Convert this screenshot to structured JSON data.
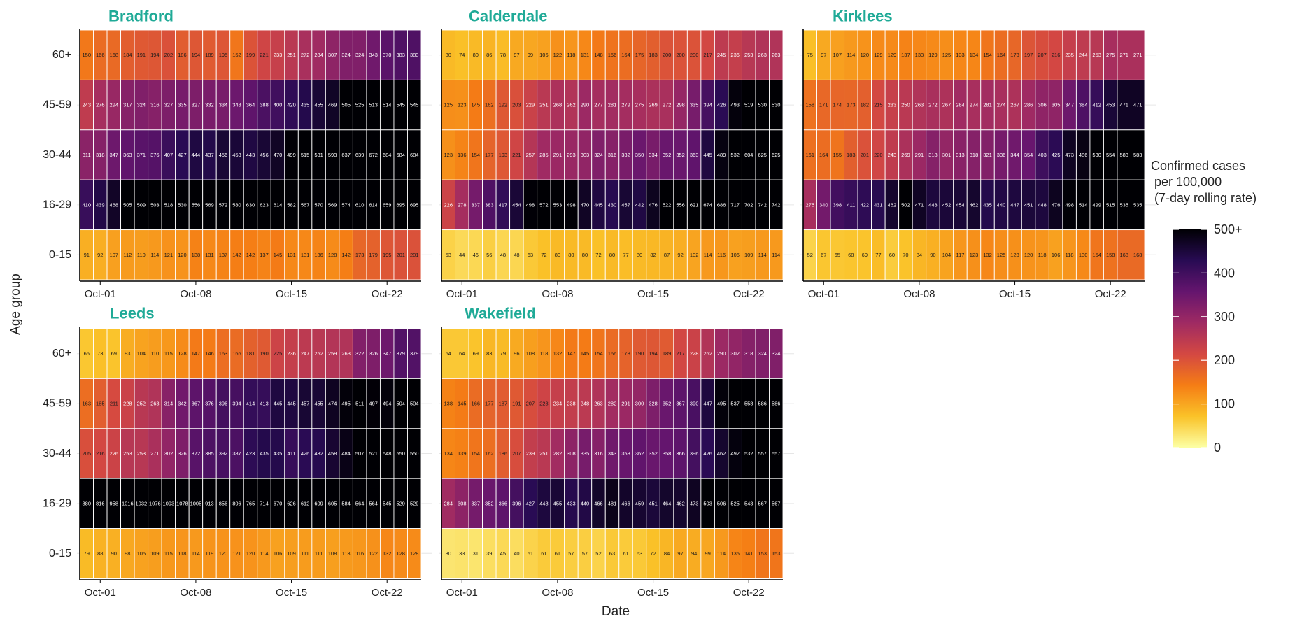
{
  "chart_data": {
    "type": "heatmap",
    "xlabel": "Date",
    "ylabel": "Age group",
    "age_groups": [
      "60+",
      "45-59",
      "30-44",
      "16-29",
      "0-15"
    ],
    "x_tick_labels": [
      "Oct-01",
      "Oct-08",
      "Oct-15",
      "Oct-22"
    ],
    "n_days": 25,
    "legend": {
      "title_lines": [
        "Confirmed cases",
        "per 100,000",
        "(7-day rolling rate)"
      ],
      "ticks": [
        "0",
        "100",
        "200",
        "300",
        "400",
        "500+"
      ],
      "range": [
        0,
        500
      ],
      "colormap": "inferno_reversed",
      "colors": [
        "#fcffa4",
        "#fac228",
        "#f57d15",
        "#d44842",
        "#9f2a63",
        "#65156e",
        "#280b53",
        "#000004"
      ]
    },
    "panels": [
      {
        "name": "Bradford",
        "rows": [
          [
            150,
            166,
            168,
            184,
            191,
            194,
            202,
            186,
            194,
            189,
            195,
            152,
            199,
            221,
            233,
            251,
            272,
            284,
            307,
            324,
            324,
            343,
            370,
            383,
            383
          ],
          [
            243,
            276,
            294,
            317,
            324,
            316,
            327,
            335,
            327,
            332,
            334,
            348,
            364,
            388,
            400,
            420,
            435,
            455,
            469,
            505,
            525,
            513,
            514,
            545,
            545
          ],
          [
            311,
            318,
            347,
            363,
            371,
            376,
            407,
            427,
            444,
            437,
            456,
            453,
            443,
            456,
            470,
            499,
            515,
            531,
            593,
            637,
            639,
            672,
            684,
            684,
            684
          ],
          [
            410,
            439,
            468,
            505,
            509,
            503,
            518,
            530,
            556,
            569,
            572,
            580,
            630,
            623,
            614,
            582,
            567,
            570,
            569,
            574,
            610,
            614,
            659,
            695,
            695
          ],
          [
            91,
            92,
            107,
            112,
            110,
            114,
            121,
            120,
            138,
            131,
            137,
            142,
            142,
            137,
            145,
            131,
            131,
            136,
            128,
            142,
            173,
            179,
            195,
            201,
            201
          ]
        ]
      },
      {
        "name": "Calderdale",
        "rows": [
          [
            80,
            74,
            80,
            86,
            78,
            97,
            99,
            106,
            122,
            118,
            131,
            148,
            156,
            164,
            175,
            183,
            200,
            200,
            200,
            217,
            245,
            236,
            253,
            263,
            263
          ],
          [
            125,
            123,
            145,
            162,
            192,
            203,
            229,
            251,
            268,
            262,
            290,
            277,
            281,
            279,
            275,
            269,
            272,
            298,
            335,
            394,
            426,
            493,
            519,
            530,
            530
          ],
          [
            123,
            136,
            154,
            177,
            193,
            221,
            257,
            285,
            291,
            293,
            303,
            324,
            316,
            332,
            350,
            334,
            352,
            352,
            363,
            445,
            489,
            532,
            604,
            625,
            625
          ],
          [
            226,
            278,
            337,
            383,
            417,
            454,
            498,
            572,
            553,
            498,
            470,
            445,
            430,
            457,
            442,
            476,
            522,
            556,
            621,
            674,
            686,
            717,
            702,
            742,
            742
          ],
          [
            53,
            44,
            46,
            56,
            48,
            48,
            63,
            72,
            80,
            80,
            80,
            72,
            80,
            77,
            80,
            82,
            87,
            92,
            102,
            114,
            116,
            106,
            109,
            114,
            114
          ]
        ]
      },
      {
        "name": "Kirklees",
        "rows": [
          [
            75,
            97,
            107,
            114,
            120,
            129,
            129,
            137,
            133,
            129,
            125,
            133,
            134,
            154,
            164,
            173,
            197,
            207,
            216,
            235,
            244,
            253,
            275,
            271,
            271
          ],
          [
            158,
            171,
            174,
            173,
            182,
            215,
            233,
            250,
            263,
            272,
            267,
            284,
            274,
            281,
            274,
            267,
            286,
            306,
            305,
            347,
            384,
            412,
            453,
            471,
            471
          ],
          [
            161,
            164,
            155,
            183,
            201,
            220,
            243,
            269,
            291,
            318,
            301,
            313,
            318,
            321,
            336,
            344,
            354,
            403,
            425,
            473,
            486,
            530,
            554,
            583,
            583
          ],
          [
            275,
            340,
            398,
            411,
            422,
            431,
            462,
            502,
            471,
            448,
            452,
            454,
            462,
            435,
            440,
            447,
            451,
            448,
            476,
            498,
            514,
            499,
            515,
            535,
            535
          ],
          [
            52,
            67,
            65,
            68,
            69,
            77,
            60,
            70,
            84,
            90,
            104,
            117,
            123,
            132,
            125,
            123,
            120,
            118,
            106,
            118,
            130,
            154,
            158,
            168,
            168
          ]
        ]
      },
      {
        "name": "Leeds",
        "rows": [
          [
            66,
            73,
            69,
            93,
            104,
            110,
            115,
            128,
            147,
            146,
            163,
            166,
            181,
            190,
            225,
            236,
            247,
            252,
            259,
            263,
            322,
            326,
            347,
            379,
            379
          ],
          [
            163,
            185,
            211,
            228,
            252,
            263,
            314,
            342,
            367,
            376,
            396,
            394,
            414,
            413,
            445,
            445,
            457,
            455,
            474,
            495,
            511,
            497,
            494,
            504,
            504
          ],
          [
            205,
            216,
            226,
            253,
            253,
            271,
            302,
            326,
            372,
            385,
            392,
            387,
            423,
            435,
            435,
            411,
            426,
            432,
            458,
            484,
            507,
            521,
            548,
            550,
            550
          ],
          [
            880,
            816,
            958,
            1016,
            1032,
            1076,
            1093,
            1078,
            1005,
            913,
            856,
            806,
            765,
            714,
            670,
            626,
            612,
            609,
            605,
            584,
            564,
            564,
            545,
            529,
            529
          ],
          [
            79,
            88,
            90,
            98,
            105,
            109,
            115,
            118,
            114,
            119,
            120,
            121,
            120,
            114,
            106,
            109,
            111,
            111,
            108,
            113,
            116,
            122,
            132,
            128,
            128
          ]
        ]
      },
      {
        "name": "Wakefield",
        "rows": [
          [
            64,
            64,
            69,
            83,
            79,
            96,
            108,
            118,
            132,
            147,
            145,
            154,
            166,
            178,
            190,
            194,
            189,
            217,
            228,
            262,
            290,
            302,
            318,
            324,
            324
          ],
          [
            138,
            145,
            166,
            177,
            187,
            191,
            207,
            223,
            234,
            238,
            248,
            263,
            282,
            291,
            300,
            328,
            352,
            367,
            390,
            447,
            495,
            537,
            558,
            586,
            586
          ],
          [
            134,
            139,
            154,
            162,
            186,
            207,
            239,
            251,
            282,
            308,
            335,
            316,
            343,
            353,
            362,
            352,
            358,
            366,
            396,
            426,
            462,
            492,
            532,
            557,
            557
          ],
          [
            284,
            308,
            337,
            352,
            366,
            396,
            427,
            448,
            455,
            433,
            440,
            466,
            481,
            466,
            459,
            451,
            464,
            462,
            473,
            503,
            506,
            525,
            543,
            567,
            567
          ],
          [
            30,
            33,
            31,
            39,
            45,
            40,
            51,
            61,
            61,
            57,
            57,
            52,
            63,
            61,
            63,
            72,
            84,
            97,
            94,
            99,
            114,
            135,
            141,
            153,
            153
          ]
        ]
      }
    ]
  }
}
